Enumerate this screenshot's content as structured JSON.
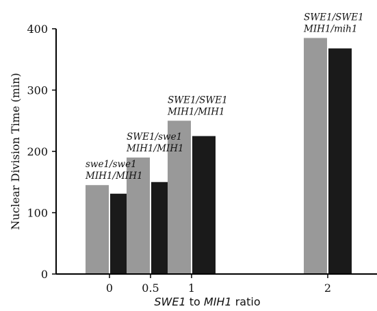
{
  "chart_data": {
    "type": "bar",
    "categories": [
      "0",
      "0.5",
      "1",
      "2"
    ],
    "x": [
      0,
      0.5,
      1,
      2
    ],
    "series": [
      {
        "values": [
          145,
          190,
          250,
          385
        ],
        "color": "#999999"
      },
      {
        "values": [
          131,
          150,
          225,
          368
        ],
        "color": "#1a1a1a"
      }
    ],
    "genotype_labels": [
      [
        "swe1/swe1",
        "MIH1/MIH1"
      ],
      [
        "SWE1/swe1",
        "MIH1/MIH1"
      ],
      [
        "SWE1/SWE1",
        "MIH1/MIH1"
      ],
      [
        "SWE1/SWE1",
        "MIH1/mih1"
      ]
    ],
    "xlabel": {
      "part1": "SWE1",
      "part2": " to ",
      "part3": "MIH1",
      "part4": " ratio"
    },
    "ylabel": "Nuclear Division Time (min)",
    "yticks": [
      0,
      100,
      200,
      300,
      400
    ],
    "ylim": [
      0,
      400
    ],
    "grid": false,
    "legend": "none"
  }
}
